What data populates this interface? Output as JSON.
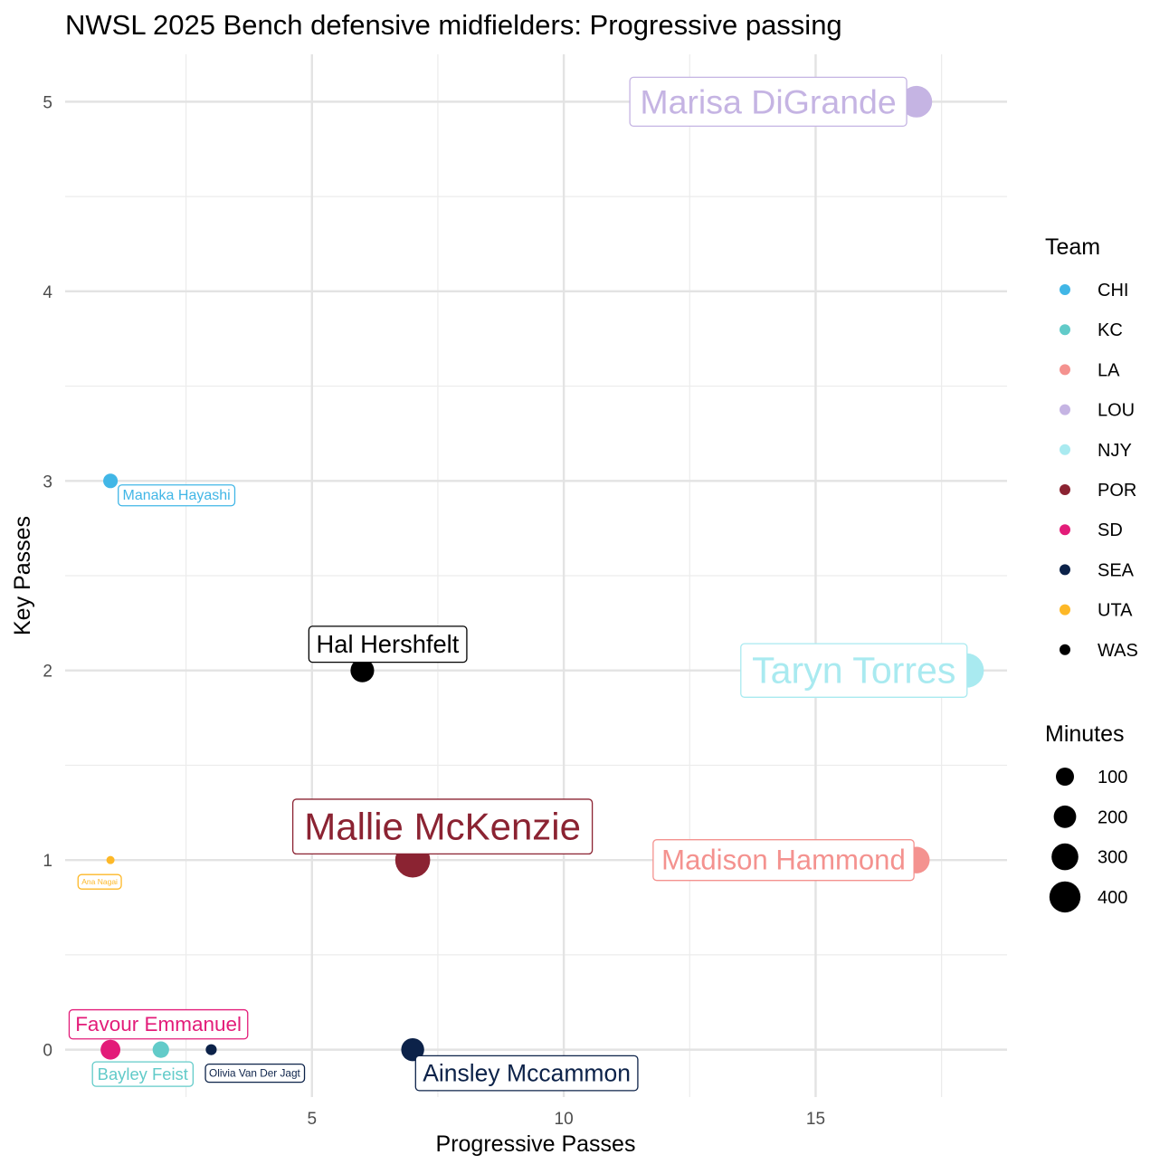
{
  "chart_data": {
    "type": "scatter",
    "title": "NWSL 2025 Bench defensive midfielders: Progressive passing",
    "xlabel": "Progressive Passes",
    "ylabel": "Key Passes",
    "xlim": [
      0.1,
      18.8
    ],
    "ylim": [
      -0.25,
      5.25
    ],
    "x_ticks": [
      5,
      10,
      15
    ],
    "y_ticks": [
      0,
      1,
      2,
      3,
      4,
      5
    ],
    "grid": true,
    "legend_position": "right",
    "team_legend": {
      "title": "Team",
      "items": [
        {
          "label": "CHI",
          "color": "#41B6E6"
        },
        {
          "label": "KC",
          "color": "#62CBC9"
        },
        {
          "label": "LA",
          "color": "#F4928F"
        },
        {
          "label": "LOU",
          "color": "#C5B4E3"
        },
        {
          "label": "NJY",
          "color": "#A9EAF0"
        },
        {
          "label": "POR",
          "color": "#8B2332"
        },
        {
          "label": "SD",
          "color": "#E31C79"
        },
        {
          "label": "SEA",
          "color": "#0C2249"
        },
        {
          "label": "UTA",
          "color": "#FDB827"
        },
        {
          "label": "WAS",
          "color": "#000000"
        }
      ]
    },
    "size_legend": {
      "title": "Minutes",
      "items": [
        {
          "label": "100",
          "value": 100
        },
        {
          "label": "200",
          "value": 200
        },
        {
          "label": "300",
          "value": 300
        },
        {
          "label": "400",
          "value": 400
        }
      ]
    },
    "points": [
      {
        "name": "Marisa DiGrande",
        "team": "LOU",
        "x": 17,
        "y": 5,
        "minutes": 330
      },
      {
        "name": "Taryn Torres",
        "team": "NJY",
        "x": 18,
        "y": 2,
        "minutes": 390
      },
      {
        "name": "Madison Hammond",
        "team": "LA",
        "x": 17,
        "y": 1,
        "minutes": 235
      },
      {
        "name": "Mallie McKenzie",
        "team": "POR",
        "x": 7,
        "y": 1,
        "minutes": 405
      },
      {
        "name": "Hal Hershfelt",
        "team": "WAS",
        "x": 6,
        "y": 2,
        "minutes": 185
      },
      {
        "name": "Manaka Hayashi",
        "team": "CHI",
        "x": 1,
        "y": 3,
        "minutes": 70
      },
      {
        "name": "Ana Nagai",
        "team": "UTA",
        "x": 1,
        "y": 1,
        "minutes": 22
      },
      {
        "name": "Favour Emmanuel",
        "team": "SD",
        "x": 1,
        "y": 0,
        "minutes": 130
      },
      {
        "name": "Bayley Feist",
        "team": "KC",
        "x": 2,
        "y": 0,
        "minutes": 90
      },
      {
        "name": "Olivia Van Der Jagt",
        "team": "SEA",
        "x": 3,
        "y": 0,
        "minutes": 40
      },
      {
        "name": "Ainsley Mccammon",
        "team": "SEA",
        "x": 7,
        "y": 0,
        "minutes": 175
      }
    ]
  }
}
